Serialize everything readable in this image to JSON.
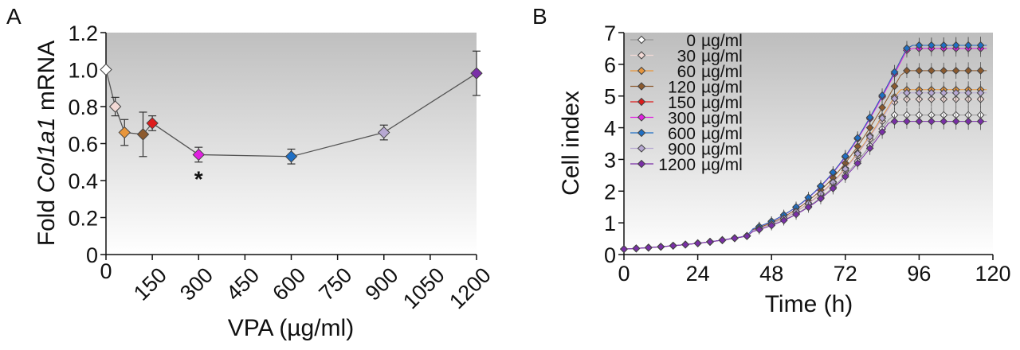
{
  "chart_data": [
    {
      "panel_label": "A",
      "type": "line",
      "xlabel_prefix": "VPA (",
      "xlabel_unit": "µg/ml",
      "xlabel_suffix": ")",
      "ylabel_prefix": "Fold ",
      "ylabel_gene": "Col1a1",
      "ylabel_suffix": " mRNA",
      "xlim": [
        0,
        1200
      ],
      "ylim": [
        0,
        1.2
      ],
      "x_ticks": [
        0,
        150,
        300,
        450,
        600,
        750,
        900,
        1050,
        1200
      ],
      "x_tick_labels": [
        "0",
        "150",
        "300",
        "450",
        "600",
        "750",
        "900",
        "1050",
        "1200"
      ],
      "y_ticks": [
        0,
        0.2,
        0.4,
        0.6,
        0.8,
        1.0,
        1.2
      ],
      "y_tick_labels": [
        "0",
        "0.2",
        "0.4",
        "0.6",
        "0.8",
        "1.0",
        "1.2"
      ],
      "grid": false,
      "points": [
        {
          "x": 0,
          "y": 1.0,
          "err": 0.0,
          "color": "#ffffff"
        },
        {
          "x": 30,
          "y": 0.8,
          "err": 0.05,
          "color": "#f2d9d5"
        },
        {
          "x": 60,
          "y": 0.66,
          "err": 0.07,
          "color": "#e8963c"
        },
        {
          "x": 120,
          "y": 0.65,
          "err": 0.12,
          "color": "#8c5a2e"
        },
        {
          "x": 150,
          "y": 0.71,
          "err": 0.04,
          "color": "#dd1c1c"
        },
        {
          "x": 300,
          "y": 0.54,
          "err": 0.04,
          "color": "#e020e0"
        },
        {
          "x": 600,
          "y": 0.53,
          "err": 0.04,
          "color": "#1f6fc5"
        },
        {
          "x": 900,
          "y": 0.66,
          "err": 0.04,
          "color": "#b7a8d2"
        },
        {
          "x": 1200,
          "y": 0.98,
          "err": 0.12,
          "color": "#7a2fa8"
        }
      ],
      "annotations": [
        {
          "text": "*",
          "x": 300
        }
      ]
    },
    {
      "panel_label": "B",
      "type": "line",
      "xlabel": "Time (h)",
      "ylabel": "Cell index",
      "xlim": [
        0,
        120
      ],
      "ylim": [
        0,
        7
      ],
      "x_ticks": [
        0,
        24,
        48,
        72,
        96,
        120
      ],
      "x_tick_labels": [
        "0",
        "24",
        "48",
        "72",
        "96",
        "120"
      ],
      "y_ticks": [
        0,
        1,
        2,
        3,
        4,
        5,
        6,
        7
      ],
      "y_tick_labels": [
        "0",
        "1",
        "2",
        "3",
        "4",
        "5",
        "6",
        "7"
      ],
      "grid": false,
      "legend_position": "top-left",
      "legend_unit": "µg/ml",
      "series": [
        {
          "name": "0",
          "color": "#ffffff",
          "y_end": 4.4
        },
        {
          "name": "30",
          "color": "#f2d9d5",
          "y_end": 4.9
        },
        {
          "name": "60",
          "color": "#e8963c",
          "y_end": 5.2
        },
        {
          "name": "120",
          "color": "#8c5a2e",
          "y_end": 5.8
        },
        {
          "name": "150",
          "color": "#dd1c1c",
          "y_end": 6.6
        },
        {
          "name": "300",
          "color": "#e020e0",
          "y_end": 6.5
        },
        {
          "name": "600",
          "color": "#1f6fc5",
          "y_end": 6.6
        },
        {
          "name": "900",
          "color": "#b7a8d2",
          "y_end": 5.1
        },
        {
          "name": "1200",
          "color": "#7a2fa8",
          "y_end": 4.2
        }
      ]
    }
  ]
}
